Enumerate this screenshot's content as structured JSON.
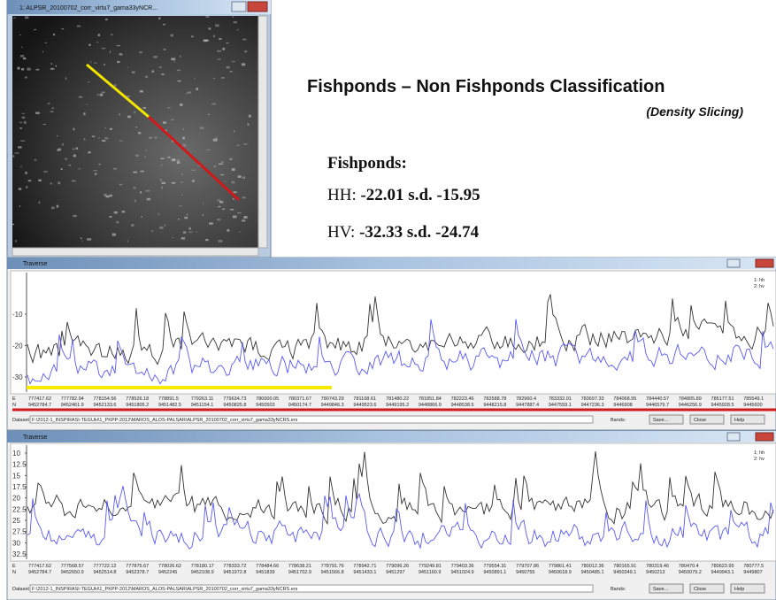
{
  "image_window": {
    "title": "1: ALPSR_20100702_corr_virtu7_gama33yNCR..."
  },
  "slide": {
    "title": "Fishponds – Non Fishponds Classification",
    "subtitle": "(Density Slicing)",
    "heading": "Fishponds:",
    "rows": [
      {
        "label": "HH:",
        "text": "-22.01 s.d.  -15.95"
      },
      {
        "label": "HV:",
        "text": "-32.33 s.d. -24.74"
      }
    ]
  },
  "traverse_windows": [
    {
      "title": "Traverse",
      "yticks": [
        -10,
        -20,
        -30
      ],
      "legend": [
        "1: hh",
        "2: hv"
      ],
      "e_label": "E",
      "n_label": "N",
      "easting": [
        777417.62,
        777782.94,
        778154.56,
        778526.18,
        778891.5,
        779263.11,
        779634.73,
        780000.05,
        780371.67,
        780743.29,
        781108.61,
        781480.22,
        781851.84,
        782223.46,
        782588.78,
        782960.4,
        783332.01,
        783697.33,
        784068.95,
        784440.57,
        784805.89,
        785177.51,
        785549.1
      ],
      "northing": [
        9452784.7,
        9452461.9,
        9452133.6,
        9451805.2,
        9451482.5,
        9451154.1,
        9450825.8,
        9450503,
        9450174.7,
        9449846.3,
        9449523.6,
        9449195.2,
        9448866.9,
        9448538.5,
        9448215.8,
        9447887.4,
        9447559.1,
        9447236.3,
        9446908,
        9446579.7,
        9446256.9,
        9445928.5,
        9445600
      ],
      "dataset_label": "Dataset:",
      "dataset_path": "F:\\2012-1_INSPIRASI-TEGUH\\1_PKPP-2012\\MAROS_ALOS-PALSAR\\ALPSR_20100702_corr_virtu7_gama33yNCRS.ers",
      "buttons": [
        "Bands:",
        "Save...",
        "Close",
        "Help"
      ]
    },
    {
      "title": "Traverse",
      "yticks": [
        10,
        12.5,
        15,
        17.5,
        20,
        22.5,
        25,
        27.5,
        30,
        32.5
      ],
      "legend": [
        "1: hh",
        "2: hv"
      ],
      "e_label": "E",
      "n_label": "N",
      "easting": [
        777417.62,
        777568.57,
        777722.12,
        777875.67,
        778026.62,
        778180.17,
        778333.72,
        778484.66,
        778638.21,
        778791.76,
        778942.71,
        779096.26,
        779249.81,
        779403.36,
        779554.31,
        779707.86,
        779861.41,
        780012.36,
        780165.91,
        780319.46,
        780470.4,
        780623.95,
        780777.5
      ],
      "northing": [
        9452784.7,
        9452650.9,
        9452514.8,
        9452378.7,
        9452245,
        9452108.9,
        9451972.8,
        9451839,
        9451702.9,
        9451566.8,
        9451433.1,
        9451297,
        9451160.9,
        9451024.9,
        9450891.1,
        9450755,
        9450618.9,
        9450485.1,
        9450349.1,
        9450213,
        9450079.2,
        9449943.1,
        9449807
      ],
      "dataset_label": "Dataset:",
      "dataset_path": "F:\\2012-1_INSPIRASI-TEGUH\\1_PKPP-2012\\MAROS_ALOS-PALSAR\\ALPSR_20100702_corr_virtu7_gama33yNCRS.ers",
      "buttons": [
        "Bands:",
        "Save...",
        "Close",
        "Help"
      ]
    }
  ]
}
